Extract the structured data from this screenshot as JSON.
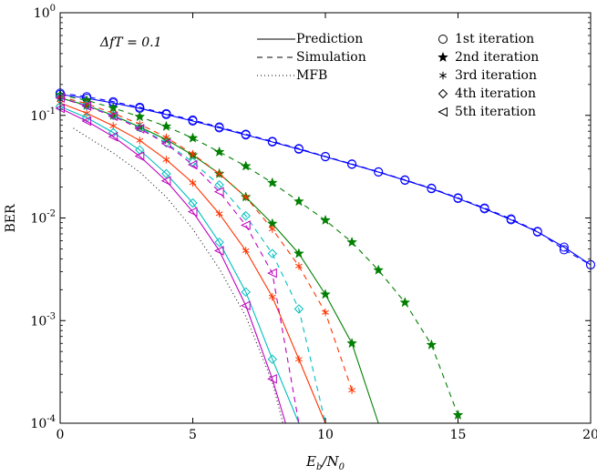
{
  "chart_data": {
    "type": "line",
    "title": "",
    "xlabel": "E_b/N_0",
    "ylabel": "BER",
    "xlim": [
      0,
      20
    ],
    "ylim": [
      0.0001,
      1
    ],
    "yscale": "log",
    "grid": false,
    "x_ticks": [
      0,
      5,
      10,
      15,
      20
    ],
    "y_ticks": [
      {
        "value": 1,
        "base": "10",
        "exp": "0"
      },
      {
        "value": 0.1,
        "base": "10",
        "exp": "-1"
      },
      {
        "value": 0.01,
        "base": "10",
        "exp": "-2"
      },
      {
        "value": 0.001,
        "base": "10",
        "exp": "-3"
      },
      {
        "value": 0.0001,
        "base": "10",
        "exp": "-4"
      }
    ],
    "annotation": "ΔfT = 0.1",
    "line_legend": [
      {
        "label": "Prediction",
        "style": "solid"
      },
      {
        "label": "Simulation",
        "style": "dashed"
      },
      {
        "label": "MFB",
        "style": "dotted"
      }
    ],
    "marker_legend": [
      {
        "label": "1st iteration",
        "marker": "circle"
      },
      {
        "label": "2nd iteration",
        "marker": "star"
      },
      {
        "label": "3rd iteration",
        "marker": "asterisk"
      },
      {
        "label": "4th iteration",
        "marker": "diamond"
      },
      {
        "label": "5th iteration",
        "marker": "triangle-left"
      }
    ],
    "series": [
      {
        "iteration": 1,
        "kind": "prediction",
        "color": "#0000ff",
        "marker": "circle",
        "x": [
          0,
          1,
          2,
          3,
          4,
          5,
          6,
          7,
          8,
          9,
          10,
          11,
          12,
          13,
          14,
          15,
          16,
          17,
          18,
          19,
          20
        ],
        "y": [
          0.16,
          0.147,
          0.132,
          0.117,
          0.102,
          0.088,
          0.0755,
          0.0645,
          0.055,
          0.0468,
          0.0395,
          0.0333,
          0.028,
          0.0233,
          0.0193,
          0.0155,
          0.0123,
          0.0096,
          0.0073,
          0.0052,
          0.0035
        ]
      },
      {
        "iteration": 1,
        "kind": "simulation",
        "color": "#0000ff",
        "marker": "circle",
        "x": [
          0,
          1,
          2,
          3,
          4,
          5,
          6,
          7,
          8,
          9,
          10,
          11,
          12,
          13,
          14,
          15,
          16,
          17,
          18,
          19,
          20
        ],
        "y": [
          0.165,
          0.152,
          0.136,
          0.12,
          0.104,
          0.09,
          0.077,
          0.0655,
          0.0558,
          0.0474,
          0.0398,
          0.0336,
          0.0282,
          0.0235,
          0.0195,
          0.0157,
          0.0125,
          0.0098,
          0.0074,
          0.0049,
          0.0035
        ]
      },
      {
        "iteration": 2,
        "kind": "prediction",
        "color": "#007f00",
        "marker": "star",
        "x": [
          0,
          1,
          2,
          3,
          4,
          5,
          6,
          7,
          8,
          9,
          10,
          11,
          12
        ],
        "y": [
          0.148,
          0.125,
          0.1,
          0.077,
          0.058,
          0.041,
          0.027,
          0.016,
          0.0088,
          0.0045,
          0.0018,
          0.0006,
          0.0001
        ]
      },
      {
        "iteration": 2,
        "kind": "simulation",
        "color": "#007f00",
        "marker": "star",
        "x": [
          0,
          1,
          2,
          3,
          4,
          5,
          6,
          7,
          8,
          9,
          10,
          11,
          12,
          13,
          14,
          15
        ],
        "y": [
          0.158,
          0.14,
          0.118,
          0.097,
          0.078,
          0.06,
          0.044,
          0.032,
          0.022,
          0.0145,
          0.0095,
          0.0058,
          0.0031,
          0.0015,
          0.00058,
          0.00012
        ]
      },
      {
        "iteration": 3,
        "kind": "prediction",
        "color": "#ff3300",
        "marker": "asterisk",
        "x": [
          0,
          1,
          2,
          3,
          4,
          5,
          6,
          7,
          8,
          9,
          10
        ],
        "y": [
          0.132,
          0.105,
          0.079,
          0.057,
          0.037,
          0.022,
          0.011,
          0.0048,
          0.0017,
          0.00042,
          0.0001
        ]
      },
      {
        "iteration": 3,
        "kind": "simulation",
        "color": "#ff3300",
        "marker": "asterisk",
        "x": [
          0,
          1,
          2,
          3,
          4,
          5,
          6,
          7,
          8,
          9,
          10,
          11
        ],
        "y": [
          0.152,
          0.13,
          0.105,
          0.082,
          0.061,
          0.042,
          0.027,
          0.016,
          0.0078,
          0.0034,
          0.0012,
          0.00021
        ]
      },
      {
        "iteration": 4,
        "kind": "prediction",
        "color": "#00bfbf",
        "marker": "diamond",
        "x": [
          0,
          1,
          2,
          3,
          4,
          5,
          6,
          7,
          8,
          9
        ],
        "y": [
          0.122,
          0.095,
          0.068,
          0.046,
          0.027,
          0.014,
          0.0058,
          0.0019,
          0.00042,
          0.0001
        ]
      },
      {
        "iteration": 4,
        "kind": "simulation",
        "color": "#00bfbf",
        "marker": "diamond",
        "x": [
          0,
          1,
          2,
          3,
          4,
          5,
          6,
          7,
          8,
          9,
          10
        ],
        "y": [
          0.15,
          0.125,
          0.1,
          0.076,
          0.054,
          0.035,
          0.021,
          0.0105,
          0.0045,
          0.0013,
          0.0001
        ]
      },
      {
        "iteration": 5,
        "kind": "prediction",
        "color": "#bf00bf",
        "marker": "triangle-left",
        "x": [
          0,
          1,
          2,
          3,
          4,
          5,
          6,
          7,
          8,
          8.5
        ],
        "y": [
          0.117,
          0.088,
          0.062,
          0.04,
          0.023,
          0.0115,
          0.0048,
          0.0014,
          0.00027,
          0.0001
        ]
      },
      {
        "iteration": 5,
        "kind": "simulation",
        "color": "#bf00bf",
        "marker": "triangle-left",
        "x": [
          0,
          1,
          2,
          3,
          4,
          5,
          6,
          7,
          8,
          9
        ],
        "y": [
          0.148,
          0.123,
          0.098,
          0.074,
          0.053,
          0.033,
          0.018,
          0.0085,
          0.0029,
          0.0001
        ]
      },
      {
        "iteration": 0,
        "kind": "mfb",
        "color": "#000000",
        "marker": "none",
        "x": [
          0.5,
          1,
          2,
          3,
          4,
          5,
          6,
          7,
          8,
          8.4
        ],
        "y": [
          0.075,
          0.062,
          0.043,
          0.028,
          0.016,
          0.0078,
          0.0032,
          0.0011,
          0.00025,
          0.0001
        ]
      }
    ]
  }
}
